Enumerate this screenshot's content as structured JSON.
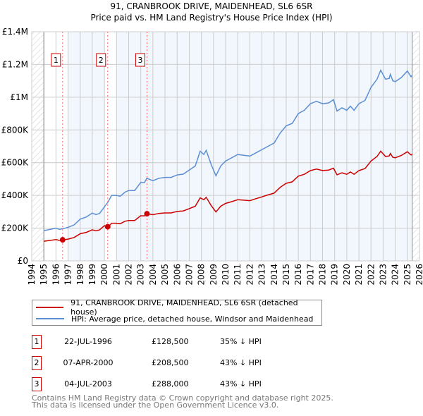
{
  "chart_data": {
    "type": "line",
    "title": "91, CRANBROOK DRIVE, MAIDENHEAD, SL6 6SR",
    "subtitle": "Price paid vs. HM Land Registry's House Price Index (HPI)",
    "xlim": [
      1994,
      2026
    ],
    "ylim": [
      0,
      1400000
    ],
    "y_ticks": [
      {
        "v": 0,
        "label": "£0"
      },
      {
        "v": 200000,
        "label": "£200K"
      },
      {
        "v": 400000,
        "label": "£400K"
      },
      {
        "v": 600000,
        "label": "£600K"
      },
      {
        "v": 800000,
        "label": "£800K"
      },
      {
        "v": 1000000,
        "label": "£1M"
      },
      {
        "v": 1200000,
        "label": "£1.2M"
      },
      {
        "v": 1400000,
        "label": "£1.4M"
      }
    ],
    "x_ticks": [
      "1994",
      "1995",
      "1996",
      "1997",
      "1998",
      "1999",
      "2000",
      "2001",
      "2002",
      "2003",
      "2004",
      "2005",
      "2006",
      "2007",
      "2008",
      "2009",
      "2010",
      "2011",
      "2012",
      "2013",
      "2014",
      "2015",
      "2016",
      "2017",
      "2018",
      "2019",
      "2020",
      "2021",
      "2022",
      "2023",
      "2024",
      "2025",
      "2026"
    ],
    "grid": true,
    "x": [
      1995.0,
      1995.5,
      1996.0,
      1996.3,
      1996.6,
      1997.0,
      1997.5,
      1998.0,
      1998.5,
      1999.0,
      1999.3,
      1999.6,
      2000.0,
      2000.3,
      2000.6,
      2001.0,
      2001.3,
      2001.7,
      2002.0,
      2002.5,
      2003.0,
      2003.3,
      2003.5,
      2004.0,
      2004.5,
      2005.0,
      2005.5,
      2006.0,
      2006.5,
      2007.0,
      2007.5,
      2007.9,
      2008.2,
      2008.4,
      2008.8,
      2009.2,
      2009.6,
      2010.0,
      2010.5,
      2011.0,
      2011.5,
      2012.0,
      2012.5,
      2013.0,
      2013.5,
      2014.0,
      2014.5,
      2015.0,
      2015.5,
      2016.0,
      2016.5,
      2017.0,
      2017.5,
      2018.0,
      2018.5,
      2018.9,
      2019.2,
      2019.6,
      2020.0,
      2020.3,
      2020.6,
      2021.0,
      2021.5,
      2022.0,
      2022.5,
      2022.8,
      2023.2,
      2023.5,
      2023.6,
      2023.8,
      2024.0,
      2024.5,
      2025.0,
      2025.3,
      2025.4
    ],
    "series": [
      {
        "name": "91, CRANBROOK DRIVE, MAIDENHEAD, SL6 6SR (detached house)",
        "color": "#cc0000",
        "values": [
          120000,
          125000,
          130000,
          125000,
          128000,
          133000,
          143000,
          166000,
          174000,
          190000,
          184000,
          189000,
          215000,
          208000,
          230000,
          230000,
          227000,
          242000,
          247000,
          247000,
          276000,
          275000,
          288000,
          282000,
          290000,
          293000,
          293000,
          302000,
          305000,
          319000,
          334000,
          385000,
          374000,
          388000,
          339000,
          299000,
          334000,
          351000,
          362000,
          374000,
          371000,
          368000,
          380000,
          391000,
          403000,
          414000,
          449000,
          474000,
          483000,
          518000,
          529000,
          552000,
          561000,
          552000,
          555000,
          566000,
          526000,
          538000,
          529000,
          543000,
          529000,
          552000,
          564000,
          610000,
          638000,
          670000,
          638000,
          641000,
          656000,
          633000,
          630000,
          644000,
          667000,
          647000,
          653000
        ]
      },
      {
        "name": "HPI: Average price, detached house, Windsor and Maidenhead",
        "color": "#5b8fd4",
        "values": [
          185000,
          192000,
          200000,
          192000,
          197000,
          205000,
          220000,
          255000,
          268000,
          292000,
          283000,
          290000,
          330000,
          360000,
          400000,
          400000,
          395000,
          420000,
          430000,
          430000,
          480000,
          478000,
          505000,
          490000,
          505000,
          510000,
          510000,
          525000,
          530000,
          555000,
          580000,
          670000,
          650000,
          675000,
          590000,
          520000,
          580000,
          610000,
          630000,
          650000,
          645000,
          640000,
          660000,
          680000,
          700000,
          720000,
          780000,
          825000,
          840000,
          900000,
          920000,
          960000,
          975000,
          960000,
          965000,
          985000,
          915000,
          935000,
          920000,
          945000,
          920000,
          960000,
          980000,
          1060000,
          1110000,
          1165000,
          1110000,
          1115000,
          1140000,
          1100000,
          1095000,
          1120000,
          1160000,
          1125000,
          1135000
        ]
      }
    ],
    "sales": [
      {
        "n": "1",
        "x": 1996.55,
        "date": "22-JUL-1996",
        "price": 128500,
        "price_label": "£128,500",
        "hpi": "35% ↓ HPI"
      },
      {
        "n": "2",
        "x": 2000.27,
        "date": "07-APR-2000",
        "price": 208500,
        "price_label": "£208,500",
        "hpi": "43% ↓ HPI"
      },
      {
        "n": "3",
        "x": 2003.51,
        "date": "04-JUL-2003",
        "price": 288000,
        "price_label": "£288,000",
        "hpi": "43% ↓ HPI"
      }
    ],
    "legend_position": "below"
  },
  "footer": [
    "Contains HM Land Registry data © Crown copyright and database right 2025.",
    "This data is licensed under the Open Government Licence v3.0."
  ]
}
